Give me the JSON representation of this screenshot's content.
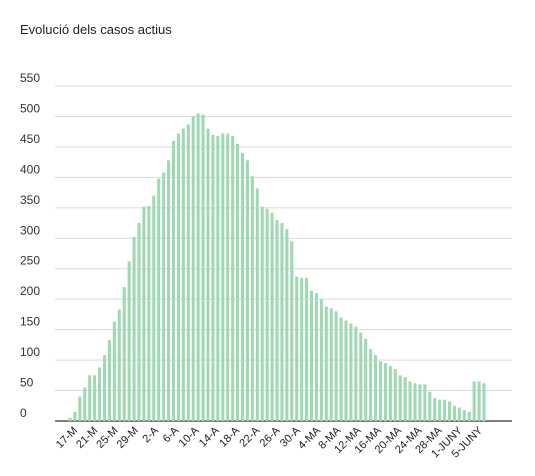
{
  "chart_data": {
    "type": "bar",
    "title": "Evolució dels casos actius",
    "xlabel": "",
    "ylabel": "",
    "ylim": [
      0,
      550
    ],
    "yticks": [
      0,
      50,
      100,
      150,
      200,
      250,
      300,
      350,
      400,
      450,
      500,
      550
    ],
    "grid": true,
    "legend": "none",
    "bar_color": "#9fd9b3",
    "x_tick_labels": [
      "17-M",
      "21-M",
      "25-M",
      "29-M",
      "2-A",
      "6-A",
      "10-A",
      "14-A",
      "18-A",
      "22-A",
      "26-A",
      "30-A",
      "4-MA",
      "8-MA",
      "12-MA",
      "16-MA",
      "20-MA",
      "24-MA",
      "28-MA",
      "1-JUNY",
      "5-JUNY"
    ],
    "values": [
      5,
      15,
      40,
      55,
      75,
      75,
      88,
      108,
      133,
      163,
      183,
      220,
      262,
      302,
      325,
      352,
      353,
      370,
      398,
      408,
      428,
      460,
      472,
      480,
      487,
      500,
      505,
      503,
      480,
      470,
      468,
      472,
      472,
      468,
      455,
      440,
      428,
      402,
      382,
      352,
      348,
      342,
      330,
      325,
      315,
      295,
      237,
      235,
      235,
      214,
      210,
      200,
      188,
      185,
      180,
      170,
      165,
      160,
      155,
      145,
      135,
      118,
      108,
      98,
      95,
      90,
      85,
      75,
      72,
      65,
      62,
      60,
      60,
      48,
      38,
      35,
      35,
      32,
      25,
      22,
      18,
      15,
      65,
      65,
      62
    ]
  }
}
